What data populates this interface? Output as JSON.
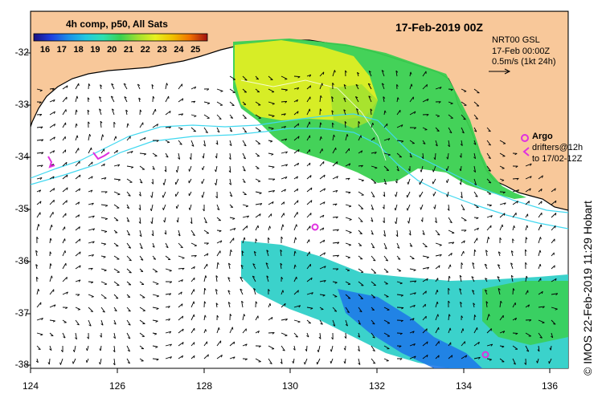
{
  "title": "17-Feb-2019 00Z",
  "colorbar": {
    "label": "4h comp, p50, All Sats",
    "ticks": [
      "16",
      "17",
      "18",
      "19",
      "20",
      "21",
      "22",
      "23",
      "24",
      "25"
    ],
    "colors": [
      "#1a1080",
      "#1f3fe0",
      "#1c8fe8",
      "#20c8e0",
      "#30e0b0",
      "#3ad050",
      "#a0e030",
      "#e8f020",
      "#f0a000",
      "#e04010",
      "#a01010"
    ]
  },
  "velocity_legend": {
    "line1": "NRT00 GSL",
    "line2": "17-Feb 00:00Z",
    "line3": "0.5m/s (1kt 24h)"
  },
  "argo_legend": {
    "argo_label": "Argo",
    "drifters_label": "drifters@12h",
    "drifters_to": "to 17/02-12Z"
  },
  "credit": "© IMOS 22-Feb-2019 11:29 Hobart",
  "axes": {
    "x_ticks": [
      "124",
      "126",
      "128",
      "130",
      "132",
      "134",
      "136"
    ],
    "y_ticks": [
      "-32",
      "-33",
      "-34",
      "-35",
      "-36",
      "-37",
      "-38"
    ]
  },
  "colors": {
    "land": "#f8c89a",
    "coast": "#000000",
    "contour": "#40d8f0"
  }
}
